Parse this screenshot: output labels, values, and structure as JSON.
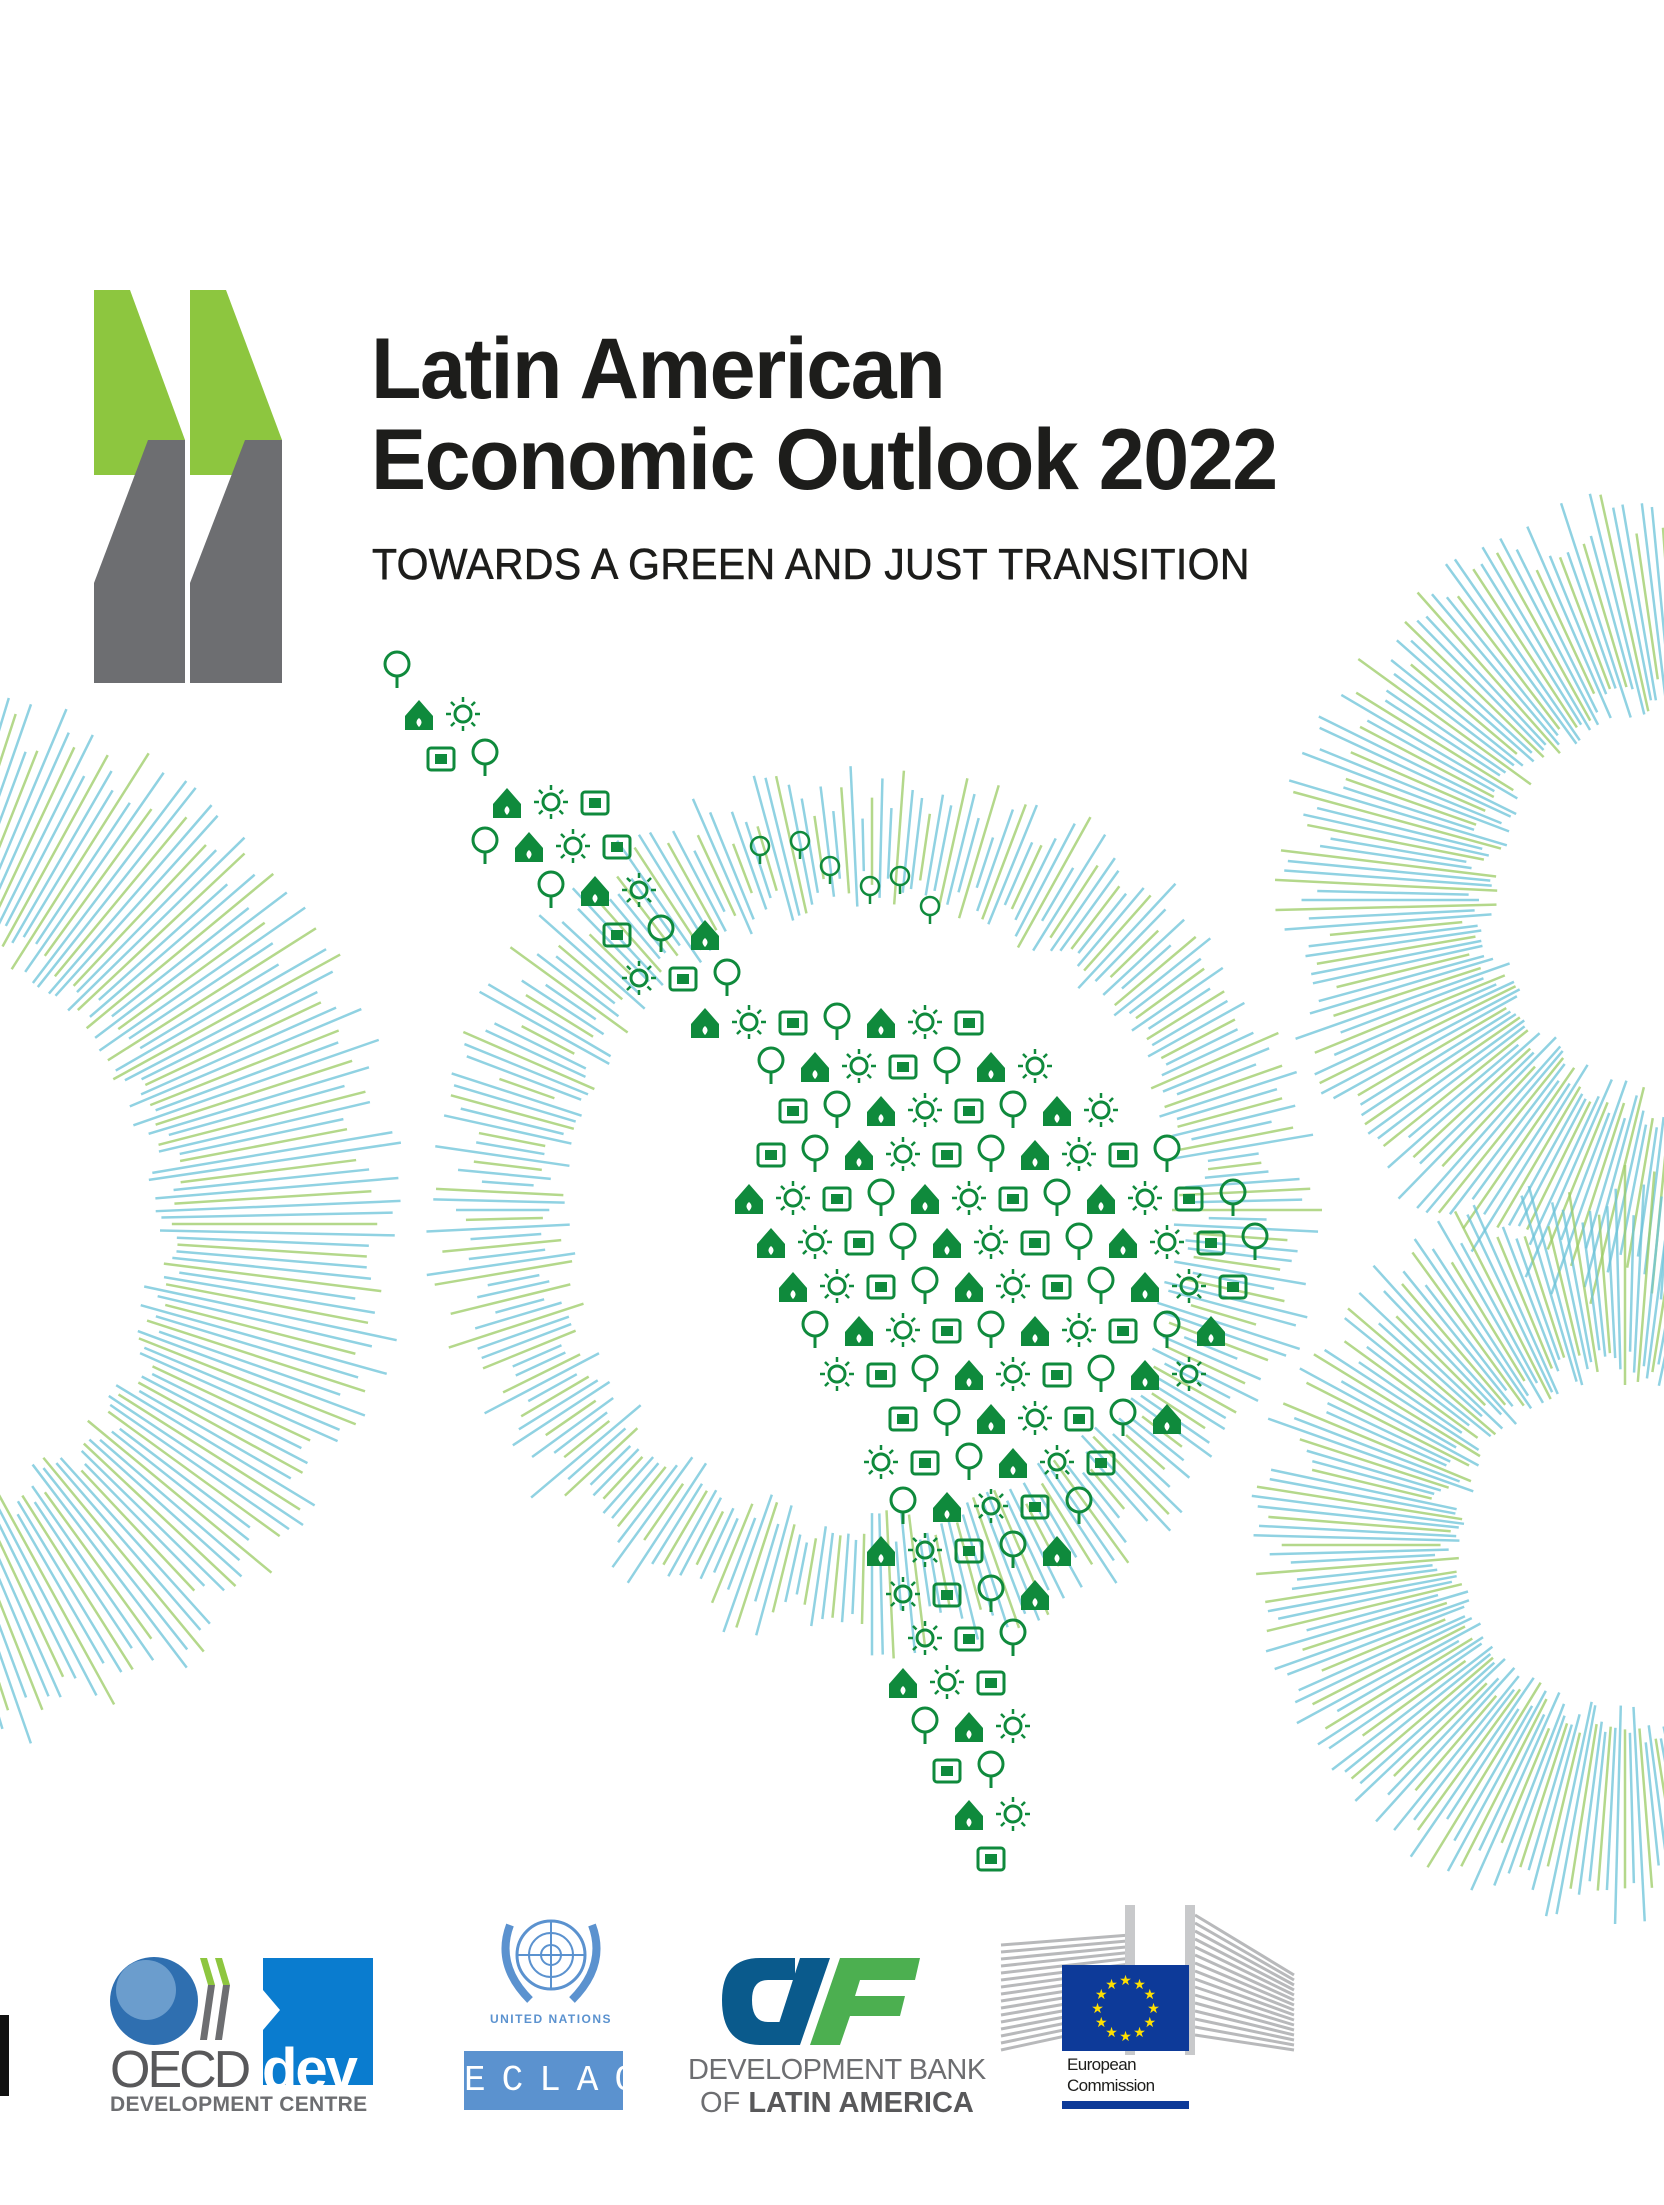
{
  "cover": {
    "title_line1": "Latin American",
    "title_line2": "Economic Outlook 2022",
    "subtitle": "TOWARDS A GREEN AND JUST TRANSITION"
  },
  "colors": {
    "oecd_green": "#8dc63f",
    "oecd_grey": "#6d6e71",
    "icon_green": "#0f8a3c",
    "burst_blue": "#6cc3d9",
    "burst_green": "#9ccc65",
    "dev_blue": "#0a7ccf",
    "eclac_blue": "#5b92cf",
    "caf_blue": "#0a5a8c",
    "caf_green": "#4caf50",
    "eu_blue": "#0d3a99",
    "eu_yellow": "#ffe000"
  },
  "logos": {
    "oecd": {
      "word": "OECD",
      "dev": "dev",
      "caption": "DEVELOPMENT  CENTRE"
    },
    "un": {
      "caption": "UNITED NATIONS",
      "eclac": "ECLAC"
    },
    "caf": {
      "mark": "CAF",
      "line1": "DEVELOPMENT BANK",
      "line2_prefix": "OF ",
      "line2_bold": "LATIN AMERICA"
    },
    "ec": {
      "line1": "European",
      "line2": "Commission"
    }
  },
  "illustration_icons": [
    "wind-icon",
    "lightbulb-globe-icon",
    "factory-icon",
    "person-icon",
    "house-leaf-icon",
    "tree-icon",
    "wind-turbine-icon",
    "train-icon",
    "sun-icon",
    "solar-panel-icon",
    "ship-icon",
    "turtle-icon",
    "hand-plant-icon",
    "water-drop-icon",
    "wheat-icon",
    "globe-icon",
    "people-icon",
    "bank-icon",
    "bicycle-icon",
    "recycle-icon",
    "handshake-icon",
    "battery-icon",
    "bus-icon",
    "fuel-pump-icon",
    "thermometer-icon"
  ]
}
